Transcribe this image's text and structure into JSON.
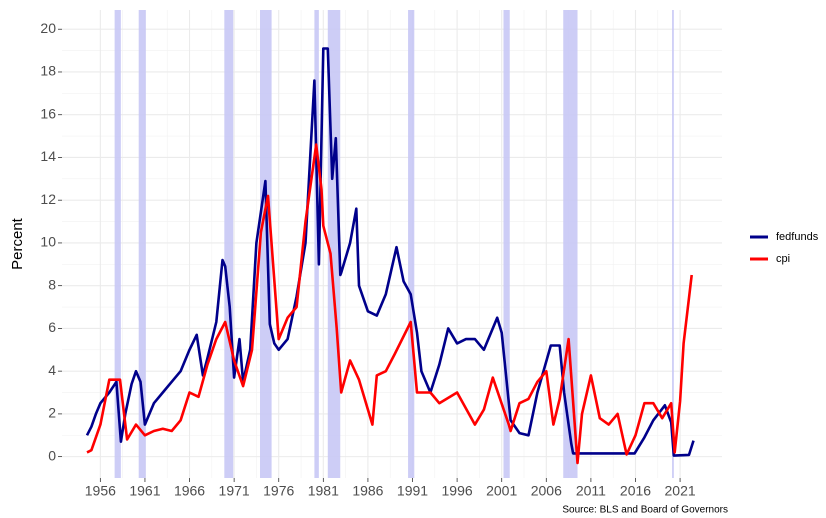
{
  "chart_data": {
    "type": "line",
    "ylabel": "Percent",
    "caption": "Source: BLS and Board of Governors",
    "xlim": [
      1951.7,
      2025.7
    ],
    "ylim": [
      -1,
      20.9
    ],
    "xticks": [
      1956,
      1961,
      1966,
      1971,
      1976,
      1981,
      1986,
      1991,
      1996,
      2001,
      2006,
      2011,
      2016,
      2021
    ],
    "yticks": [
      0,
      2,
      4,
      6,
      8,
      10,
      12,
      14,
      16,
      18,
      20
    ],
    "grid": true,
    "legend": "right",
    "recession_color": "#c8c8f5",
    "recessions": [
      [
        1957.6,
        1958.3
      ],
      [
        1960.3,
        1961.1
      ],
      [
        1969.9,
        1970.9
      ],
      [
        1973.9,
        1975.2
      ],
      [
        1980.0,
        1980.5
      ],
      [
        1981.5,
        1982.9
      ],
      [
        1990.5,
        1991.2
      ],
      [
        2001.2,
        2001.9
      ],
      [
        2007.9,
        2009.5
      ],
      [
        2020.1,
        2020.3
      ]
    ],
    "series": [
      {
        "name": "fedfunds",
        "color": "#00008b",
        "x": [
          1954.5,
          1955,
          1955.5,
          1956,
          1957,
          1957.8,
          1958.3,
          1958.8,
          1959.5,
          1960,
          1960.5,
          1961,
          1961.5,
          1962,
          1963,
          1964,
          1965,
          1966,
          1966.8,
          1967.5,
          1968,
          1969,
          1969.7,
          1970,
          1970.5,
          1971,
          1971.6,
          1972,
          1972.8,
          1973.5,
          1974.5,
          1975,
          1975.5,
          1976,
          1977,
          1978,
          1979,
          1980,
          1980.5,
          1981,
          1981.5,
          1982,
          1982.4,
          1982.9,
          1983,
          1984,
          1984.7,
          1985,
          1986,
          1987,
          1988,
          1989.2,
          1990,
          1990.8,
          1991.5,
          1992,
          1993,
          1994,
          1995,
          1996,
          1997,
          1998,
          1999,
          2000.5,
          2001,
          2002,
          2003,
          2004,
          2005,
          2006.5,
          2007.5,
          2008,
          2008.8,
          2009,
          2015.9,
          2017,
          2018,
          2019.3,
          2020,
          2020.3,
          2022,
          2022.5
        ],
        "values": [
          1.0,
          1.4,
          2.0,
          2.5,
          3.0,
          3.5,
          0.7,
          2.0,
          3.4,
          4.0,
          3.5,
          1.5,
          2.0,
          2.5,
          3.0,
          3.5,
          4.0,
          5.0,
          5.7,
          3.8,
          4.6,
          6.3,
          9.2,
          8.9,
          7.0,
          3.7,
          5.5,
          3.5,
          5.0,
          10.0,
          12.9,
          6.2,
          5.3,
          5.0,
          5.5,
          7.5,
          10.0,
          17.6,
          9.0,
          19.1,
          19.1,
          13.0,
          14.9,
          8.5,
          8.6,
          10.0,
          11.6,
          8.0,
          6.8,
          6.6,
          7.6,
          9.8,
          8.2,
          7.6,
          5.8,
          4.0,
          3.0,
          4.3,
          6.0,
          5.3,
          5.5,
          5.5,
          5.0,
          6.5,
          5.8,
          1.7,
          1.1,
          1.0,
          3.0,
          5.2,
          5.2,
          3.0,
          0.6,
          0.15,
          0.15,
          0.9,
          1.7,
          2.4,
          1.6,
          0.05,
          0.08,
          0.75
        ]
      },
      {
        "name": "cpi",
        "color": "#ff0000",
        "x": [
          1954.5,
          1955,
          1956,
          1957,
          1958.2,
          1959,
          1960,
          1961,
          1962,
          1963,
          1964,
          1965,
          1966,
          1967,
          1968,
          1969,
          1970,
          1971,
          1972,
          1973,
          1974,
          1974.8,
          1976,
          1977,
          1978,
          1979,
          1980.2,
          1980.8,
          1981,
          1981.8,
          1982.5,
          1983,
          1984,
          1985,
          1986.5,
          1987,
          1988,
          1989,
          1990.8,
          1991.5,
          1992,
          1993,
          1994,
          1996,
          1998,
          1999,
          2000,
          2001.8,
          2002,
          2003,
          2004,
          2005,
          2006,
          2006.8,
          2007.5,
          2008.5,
          2009.5,
          2010,
          2011,
          2012,
          2013,
          2014,
          2015,
          2016,
          2017,
          2018,
          2019,
          2020,
          2020.4,
          2021,
          2021.4,
          2022.3
        ],
        "values": [
          0.2,
          0.3,
          1.5,
          3.6,
          3.6,
          0.8,
          1.5,
          1.0,
          1.2,
          1.3,
          1.2,
          1.7,
          3.0,
          2.8,
          4.3,
          5.5,
          6.3,
          4.5,
          3.3,
          5.0,
          10.5,
          12.2,
          5.5,
          6.5,
          7.0,
          11.0,
          14.6,
          12.5,
          10.8,
          9.5,
          6.0,
          3.0,
          4.5,
          3.6,
          1.5,
          3.8,
          4.0,
          4.8,
          6.3,
          3.0,
          3.0,
          3.0,
          2.5,
          3.0,
          1.5,
          2.2,
          3.7,
          1.5,
          1.2,
          2.5,
          2.7,
          3.5,
          4.0,
          1.5,
          2.7,
          5.5,
          -0.3,
          2.0,
          3.8,
          1.8,
          1.5,
          2.0,
          0.1,
          1.0,
          2.5,
          2.5,
          1.8,
          2.5,
          0.2,
          2.6,
          5.3,
          8.5
        ]
      }
    ]
  }
}
